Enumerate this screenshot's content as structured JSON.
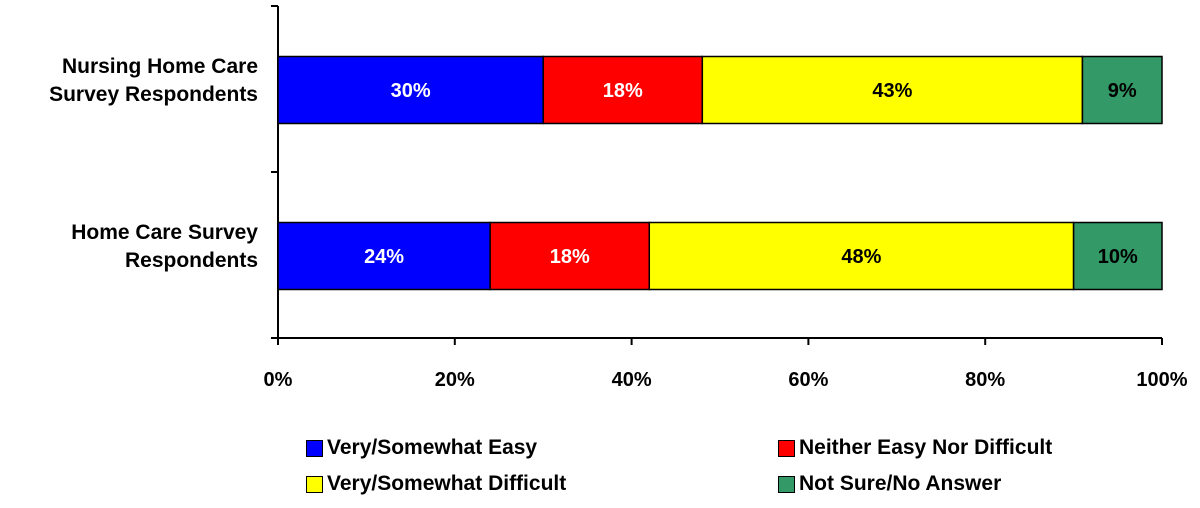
{
  "chart_data": {
    "type": "bar",
    "orientation": "horizontal",
    "stacked": true,
    "categories": [
      [
        "Nursing Home Care",
        "Survey Respondents"
      ],
      [
        "Home Care Survey",
        "Respondents"
      ]
    ],
    "series": [
      {
        "name": "Very/Somewhat Easy",
        "values": [
          30,
          24
        ],
        "color": "#0000FF",
        "label_color": "#FFFFFF"
      },
      {
        "name": "Neither Easy Nor Difficult",
        "values": [
          18,
          18
        ],
        "color": "#FF0000",
        "label_color": "#FFFFFF"
      },
      {
        "name": "Very/Somewhat Difficult",
        "values": [
          43,
          48
        ],
        "color": "#FFFF00",
        "label_color": "#000000"
      },
      {
        "name": "Not Sure/No Answer",
        "values": [
          9,
          10
        ],
        "color": "#339966",
        "label_color": "#000000"
      }
    ],
    "xlim": [
      0,
      100
    ],
    "xticks": [
      "0%",
      "20%",
      "40%",
      "60%",
      "80%",
      "100%"
    ],
    "value_suffix": "%",
    "title": "",
    "xlabel": "",
    "ylabel": "",
    "grid": false,
    "legend_position": "bottom"
  }
}
